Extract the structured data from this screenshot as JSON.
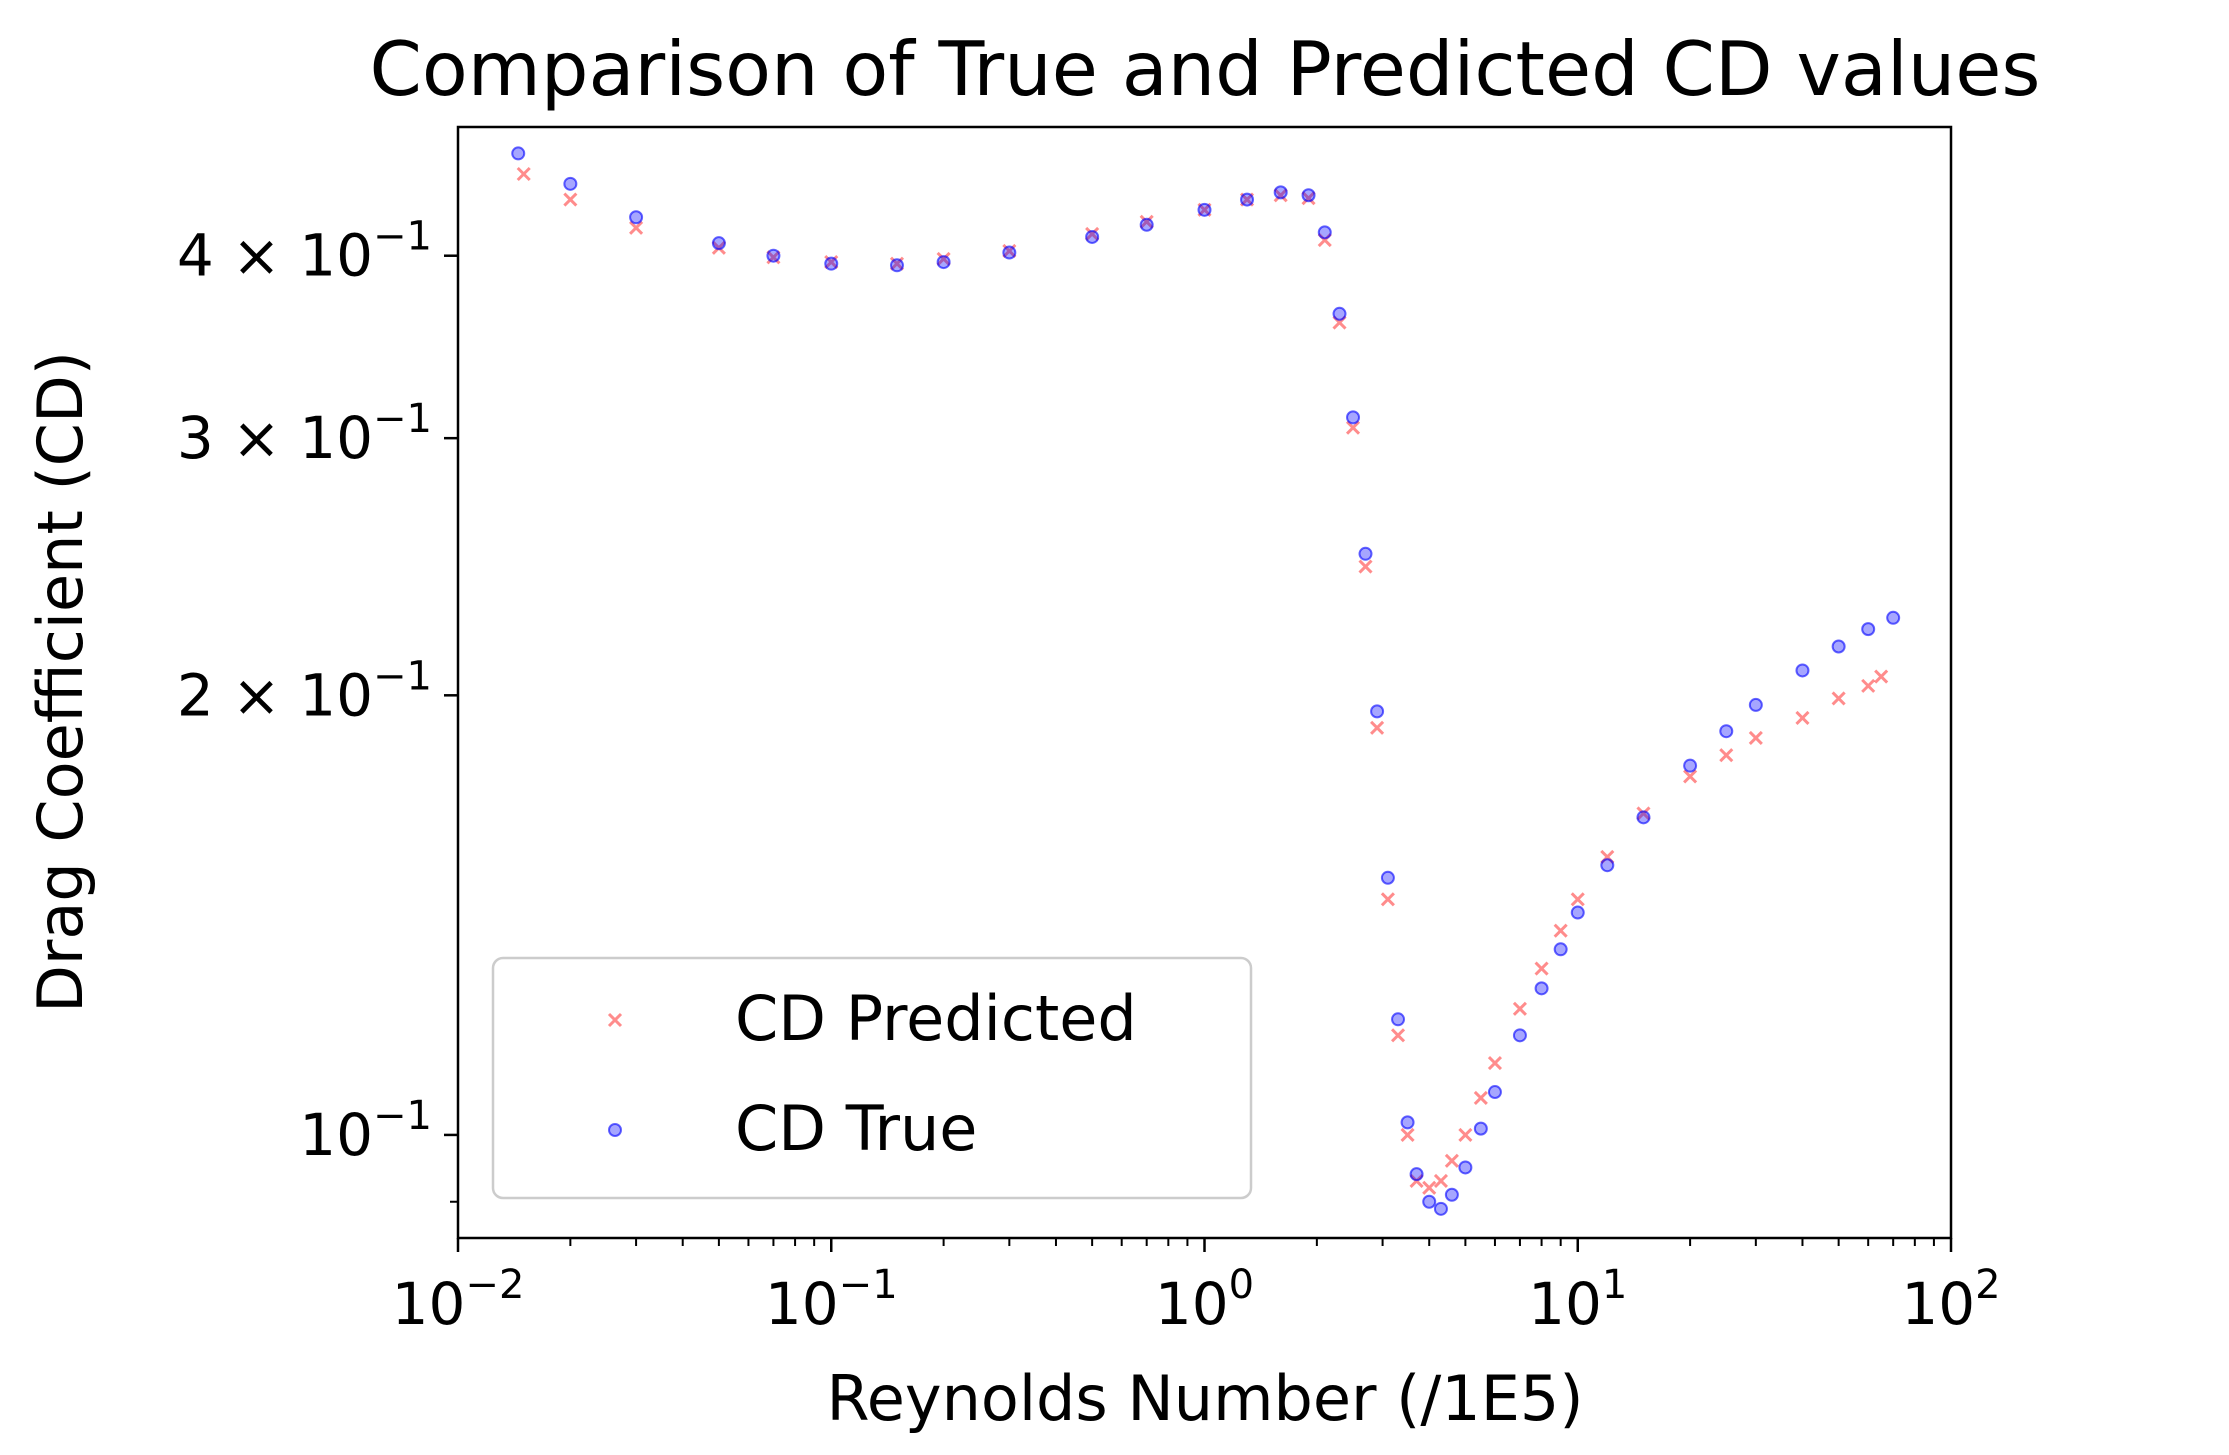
{
  "chart_data": {
    "type": "scatter",
    "title": "Comparison of True and Predicted CD values",
    "xlabel": "Reynolds Number (/1E5)",
    "ylabel": "Drag Coefficient (CD)",
    "xscale": "log",
    "yscale": "log",
    "xlim": [
      0.01,
      100
    ],
    "ylim": [
      0.085,
      0.49
    ],
    "grid": false,
    "legend_position": "lower-left",
    "x_ticks": [
      {
        "value": 0.01,
        "base": "10",
        "exp": "−2"
      },
      {
        "value": 0.1,
        "base": "10",
        "exp": "−1"
      },
      {
        "value": 1,
        "base": "10",
        "exp": "0"
      },
      {
        "value": 10,
        "base": "10",
        "exp": "1"
      },
      {
        "value": 100,
        "base": "10",
        "exp": "2"
      }
    ],
    "y_ticks": [
      {
        "value": 0.4,
        "prefix": "4 × ",
        "base": "10",
        "exp": "−1"
      },
      {
        "value": 0.3,
        "prefix": "3 × ",
        "base": "10",
        "exp": "−1"
      },
      {
        "value": 0.2,
        "prefix": "2 × ",
        "base": "10",
        "exp": "−1"
      },
      {
        "value": 0.1,
        "prefix": "",
        "base": "10",
        "exp": "−1"
      }
    ],
    "series": [
      {
        "name": "CD Predicted",
        "color": "#ff0000",
        "marker": "x",
        "x": [
          0.015,
          0.02,
          0.03,
          0.05,
          0.07,
          0.1,
          0.15,
          0.2,
          0.3,
          0.5,
          0.7,
          1.0,
          1.3,
          1.6,
          1.9,
          2.1,
          2.3,
          2.5,
          2.7,
          2.9,
          3.1,
          3.3,
          3.5,
          3.7,
          4.0,
          4.3,
          4.6,
          5.0,
          5.5,
          6.0,
          7.0,
          8.0,
          9.0,
          10.0,
          12.0,
          15.0,
          20.0,
          25.0,
          30.0,
          40.0,
          50.0,
          60.0,
          65.0
        ],
        "y": [
          0.455,
          0.437,
          0.418,
          0.405,
          0.399,
          0.396,
          0.395,
          0.398,
          0.403,
          0.414,
          0.422,
          0.43,
          0.437,
          0.44,
          0.438,
          0.41,
          0.36,
          0.305,
          0.245,
          0.19,
          0.145,
          0.117,
          0.1,
          0.093,
          0.092,
          0.093,
          0.096,
          0.1,
          0.106,
          0.112,
          0.122,
          0.13,
          0.138,
          0.145,
          0.155,
          0.166,
          0.176,
          0.182,
          0.187,
          0.193,
          0.199,
          0.203,
          0.206
        ]
      },
      {
        "name": "CD True",
        "color": "#0000ff",
        "marker": "o",
        "x": [
          0.0145,
          0.02,
          0.03,
          0.05,
          0.07,
          0.1,
          0.15,
          0.2,
          0.3,
          0.5,
          0.7,
          1.0,
          1.3,
          1.6,
          1.9,
          2.1,
          2.3,
          2.5,
          2.7,
          2.9,
          3.1,
          3.3,
          3.5,
          3.7,
          4.0,
          4.3,
          4.6,
          5.0,
          5.5,
          6.0,
          7.0,
          8.0,
          9.0,
          10.0,
          12.0,
          15.0,
          20.0,
          25.0,
          30.0,
          40.0,
          50.0,
          60.0,
          70.0
        ],
        "y": [
          0.47,
          0.448,
          0.425,
          0.408,
          0.4,
          0.395,
          0.394,
          0.396,
          0.402,
          0.412,
          0.42,
          0.43,
          0.437,
          0.442,
          0.44,
          0.415,
          0.365,
          0.31,
          0.25,
          0.195,
          0.15,
          0.12,
          0.102,
          0.094,
          0.09,
          0.089,
          0.091,
          0.095,
          0.101,
          0.107,
          0.117,
          0.126,
          0.134,
          0.142,
          0.153,
          0.165,
          0.179,
          0.189,
          0.197,
          0.208,
          0.216,
          0.222,
          0.226
        ]
      }
    ]
  }
}
